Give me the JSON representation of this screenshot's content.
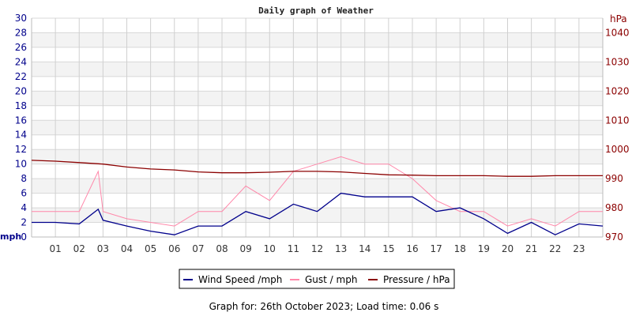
{
  "chart_data": {
    "type": "line",
    "title": "Daily graph of Weather",
    "footer": "Graph for: 26th October 2023; Load time: 0.06 s",
    "x_unit": "hour",
    "x_ticks": [
      "01",
      "02",
      "03",
      "04",
      "05",
      "06",
      "07",
      "08",
      "09",
      "10",
      "11",
      "12",
      "13",
      "14",
      "15",
      "16",
      "17",
      "18",
      "19",
      "20",
      "21",
      "22",
      "23"
    ],
    "y_left": {
      "label": "mph",
      "range": [
        0,
        30
      ],
      "ticks": [
        0,
        2,
        4,
        6,
        8,
        10,
        12,
        14,
        16,
        18,
        20,
        22,
        24,
        26,
        28,
        30
      ],
      "color": "#00008b"
    },
    "y_right": {
      "label": "hPa",
      "range": [
        970,
        1045
      ],
      "ticks": [
        970,
        980,
        990,
        1000,
        1010,
        1020,
        1030,
        1040
      ],
      "color": "#8b0000"
    },
    "grid": true,
    "legend_position": "bottom",
    "x": [
      0,
      1,
      2,
      2.8,
      3,
      4,
      5,
      6,
      7,
      8,
      9,
      10,
      11,
      12,
      13,
      14,
      15,
      16,
      17,
      18,
      19,
      20,
      21,
      22,
      23,
      24
    ],
    "series": [
      {
        "name": "Wind Speed /mph",
        "color": "#00008b",
        "axis": "left",
        "values": [
          2.0,
          2.0,
          1.8,
          3.8,
          2.3,
          1.5,
          0.8,
          0.3,
          1.5,
          1.5,
          3.5,
          2.5,
          4.5,
          3.5,
          6.0,
          5.5,
          5.5,
          5.5,
          3.5,
          4.0,
          2.5,
          0.5,
          2.0,
          0.3,
          1.8,
          1.5
        ]
      },
      {
        "name": "Gust / mph",
        "color": "#ff88aa",
        "axis": "left",
        "values": [
          3.5,
          3.5,
          3.5,
          9.0,
          3.5,
          2.5,
          2.0,
          1.5,
          3.5,
          3.5,
          7.0,
          5.0,
          9.0,
          10.0,
          11.0,
          10.0,
          10.0,
          8.0,
          5.0,
          3.5,
          3.5,
          1.5,
          2.5,
          1.5,
          3.5,
          3.5
        ]
      },
      {
        "name": "Pressure / hPa",
        "color": "#8b0000",
        "axis": "right",
        "values": [
          996.3,
          996.0,
          995.5,
          995.1,
          995.0,
          994.0,
          993.3,
          993.0,
          992.3,
          992.0,
          992.0,
          992.2,
          992.5,
          992.5,
          992.3,
          991.8,
          991.3,
          991.2,
          991.0,
          991.0,
          991.0,
          990.8,
          990.8,
          991.0,
          991.0,
          991.0
        ]
      }
    ]
  }
}
